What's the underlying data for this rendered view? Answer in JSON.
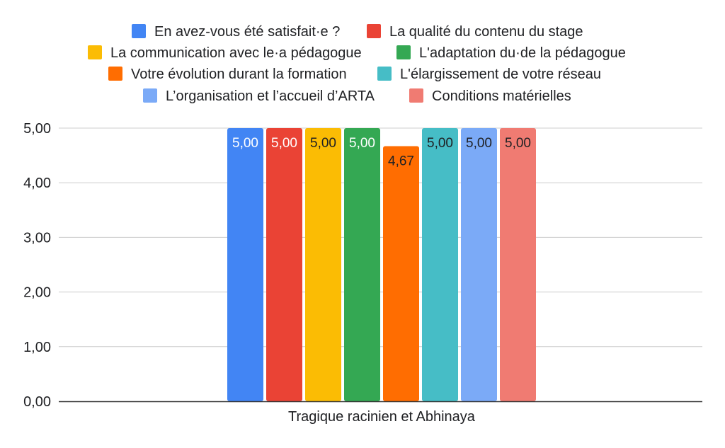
{
  "chart_data": {
    "type": "bar",
    "title": "",
    "xlabel": "",
    "ylabel": "",
    "categories": [
      "Tragique racinien et Abhinaya"
    ],
    "ylim": [
      0,
      5
    ],
    "yticks": [
      "0,00",
      "1,00",
      "2,00",
      "3,00",
      "4,00",
      "5,00"
    ],
    "grid": true,
    "legend_position": "top",
    "series": [
      {
        "name": "En avez-vous été satisfait·e ?",
        "values": [
          5.0
        ],
        "label": "5,00",
        "color": "#4285F4",
        "label_color": "#ffffff"
      },
      {
        "name": "La qualité du contenu du stage",
        "values": [
          5.0
        ],
        "label": "5,00",
        "color": "#EA4335",
        "label_color": "#ffffff"
      },
      {
        "name": "La communication avec le·a pédagogue",
        "values": [
          5.0
        ],
        "label": "5,00",
        "color": "#FBBC04",
        "label_color": "#202124"
      },
      {
        "name": "L'adaptation du·de la pédagogue",
        "values": [
          5.0
        ],
        "label": "5,00",
        "color": "#34A853",
        "label_color": "#ffffff"
      },
      {
        "name": "Votre évolution durant la formation",
        "values": [
          4.67
        ],
        "label": "4,67",
        "color": "#FF6D01",
        "label_color": "#202124"
      },
      {
        "name": "L'élargissement de votre réseau",
        "values": [
          5.0
        ],
        "label": "5,00",
        "color": "#46BDC6",
        "label_color": "#202124"
      },
      {
        "name": "L’organisation et l’accueil d’ARTA",
        "values": [
          5.0
        ],
        "label": "5,00",
        "color": "#7BAAF7",
        "label_color": "#202124"
      },
      {
        "name": "Conditions matérielles",
        "values": [
          5.0
        ],
        "label": "5,00",
        "color": "#F07B72",
        "label_color": "#202124"
      }
    ]
  }
}
